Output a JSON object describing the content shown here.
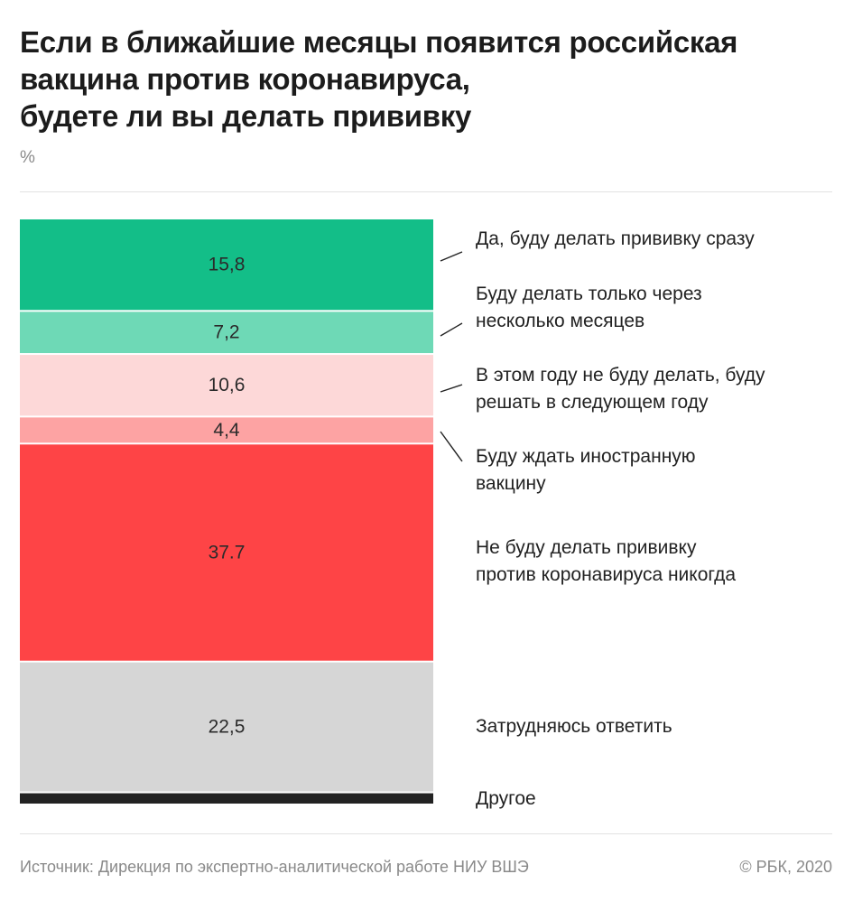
{
  "title_lines": [
    "Если в ближайшие месяцы появится российская",
    "вакцина против коронавируса,",
    "будете ли вы делать прививку"
  ],
  "unit": "%",
  "chart_data": {
    "type": "bar",
    "stacked": true,
    "orientation": "vertical",
    "categories": [
      "Да, буду делать прививку сразу",
      "Буду делать только через несколько месяцев",
      "В этом году не буду делать, буду решать в следующем году",
      "Буду ждать иностранную вакцину",
      "Не буду делать прививку против коронавируса никогда",
      "Затрудняюсь ответить",
      "Другое"
    ],
    "category_lines": [
      [
        "Да, буду делать прививку сразу"
      ],
      [
        "Буду делать только через",
        "несколько месяцев"
      ],
      [
        "В этом году не буду делать, буду",
        "решать в следующем году"
      ],
      [
        "Буду ждать иностранную",
        "вакцину"
      ],
      [
        "Не буду делать прививку",
        "против коронавируса никогда"
      ],
      [
        "Затрудняюсь ответить"
      ],
      [
        "Другое"
      ]
    ],
    "values": [
      15.8,
      7.2,
      10.6,
      4.4,
      37.7,
      22.5,
      1.8
    ],
    "value_labels": [
      "15,8",
      "7,2",
      "10,6",
      "4,4",
      "37.7",
      "22,5",
      ""
    ],
    "colors": [
      "#13be88",
      "#6ed9b6",
      "#fdd8d8",
      "#fda3a3",
      "#fe4446",
      "#d6d6d6",
      "#222222"
    ],
    "ylim": [
      0,
      100
    ]
  },
  "footer": {
    "source": "Источник: Дирекция по экспертно-аналитической работе НИУ ВШЭ",
    "copyright": "© РБК, 2020"
  }
}
